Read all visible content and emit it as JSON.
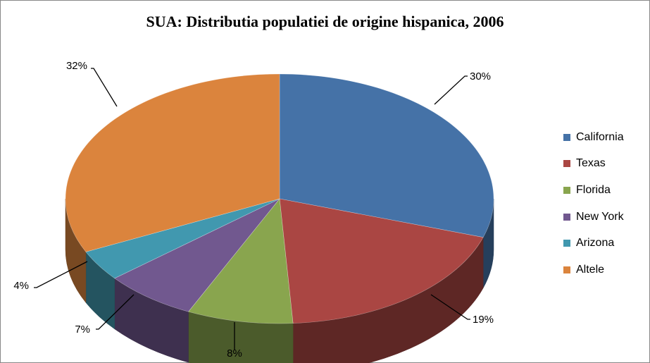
{
  "chart_data": {
    "type": "pie",
    "title": "SUA: Distributia populatiei de origine hispanica, 2006",
    "categories": [
      "California",
      "Texas",
      "Florida",
      "New York",
      "Arizona",
      "Altele"
    ],
    "values": [
      30,
      19,
      8,
      7,
      4,
      32
    ],
    "labels": [
      "30%",
      "19%",
      "8%",
      "7%",
      "4%",
      "32%"
    ],
    "colors": [
      "#4572A7",
      "#AA4643",
      "#89A54E",
      "#71588F",
      "#4198AF",
      "#DB843D"
    ],
    "legend_position": "right",
    "three_d": true
  }
}
